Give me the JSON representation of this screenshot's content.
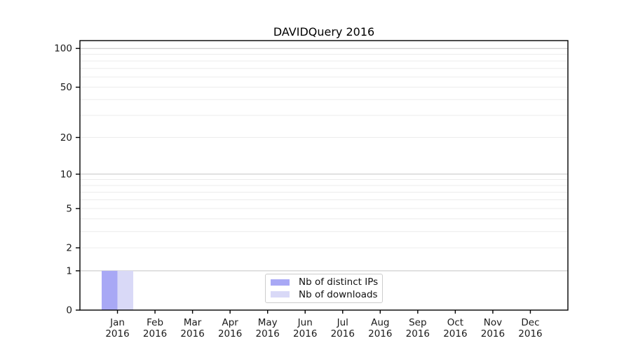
{
  "chart_data": {
    "type": "bar",
    "title": "DAVIDQuery 2016",
    "categories": [
      "Jan 2016",
      "Feb 2016",
      "Mar 2016",
      "Apr 2016",
      "May 2016",
      "Jun 2016",
      "Jul 2016",
      "Aug 2016",
      "Sep 2016",
      "Oct 2016",
      "Nov 2016",
      "Dec 2016"
    ],
    "series": [
      {
        "name": "Nb of distinct IPs",
        "color": "#a8a8f5",
        "values": [
          1,
          0,
          0,
          0,
          0,
          0,
          0,
          0,
          0,
          0,
          0,
          0
        ]
      },
      {
        "name": "Nb of downloads",
        "color": "#d9d9f7",
        "values": [
          1,
          0,
          0,
          0,
          0,
          0,
          0,
          0,
          0,
          0,
          0,
          0
        ]
      }
    ],
    "xlabel": "",
    "ylabel": "",
    "y_axis": {
      "scale": "log1p",
      "ylim": [
        0,
        115
      ],
      "tick_values": [
        0,
        1,
        2,
        5,
        10,
        20,
        50,
        100
      ],
      "tick_labels": [
        "0",
        "1",
        "2",
        "5",
        "10",
        "20",
        "50",
        "100"
      ],
      "major_gridlines": [
        1,
        10,
        100
      ],
      "minor_gridlines": [
        2,
        3,
        4,
        5,
        6,
        7,
        8,
        9,
        20,
        30,
        40,
        50,
        60,
        70,
        80,
        90
      ]
    },
    "grid": "horizontal",
    "legend_position": "inside-bottom-center",
    "colors": {
      "major_grid": "#c3c3c3",
      "minor_grid": "#ececec",
      "spine": "#000000",
      "tick_text": "#1a1a1a",
      "legend_border": "#cccccc",
      "background": "#ffffff"
    }
  }
}
